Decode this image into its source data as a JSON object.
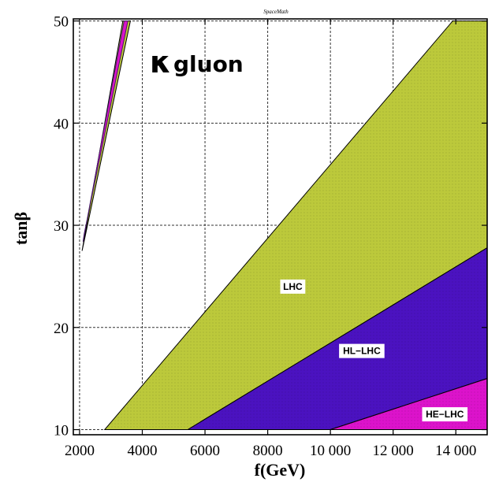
{
  "chart_data": {
    "type": "area",
    "title": "SpaceMath",
    "annotation_main": "κ",
    "annotation_sub": "gluon",
    "xlabel": "f(GeV)",
    "ylabel": "tanβ",
    "xlim": [
      1800,
      15000
    ],
    "ylim": [
      9.5,
      50.2
    ],
    "xticks": [
      2000,
      4000,
      6000,
      8000,
      10000,
      12000,
      14000
    ],
    "xtick_labels": [
      "2000",
      "4000",
      "6000",
      "8000",
      "10 000",
      "12 000",
      "14 000"
    ],
    "yticks": [
      10,
      20,
      30,
      40,
      50
    ],
    "ytick_labels": [
      "10",
      "20",
      "30",
      "40",
      "50"
    ],
    "grid": true,
    "colors": {
      "LHC": "#bcc93b",
      "HL-LHC": "#4b12c0",
      "HE-LHC": "#dc13cb",
      "sliver_edge": "#4a1a6a"
    },
    "regions": [
      {
        "name": "LHC",
        "label": "LHC",
        "label_at": [
          8800,
          24
        ],
        "polygon": [
          [
            2800,
            10
          ],
          [
            13900,
            50
          ],
          [
            15000,
            50
          ],
          [
            15000,
            27.8
          ],
          [
            5450,
            10
          ]
        ]
      },
      {
        "name": "HL-LHC",
        "label": "HL−LHC",
        "label_at": [
          11000,
          17.7
        ],
        "polygon": [
          [
            5450,
            10
          ],
          [
            15000,
            27.8
          ],
          [
            15000,
            15
          ],
          [
            10000,
            10
          ]
        ]
      },
      {
        "name": "HE-LHC",
        "label": "HE−LHC",
        "label_at": [
          13650,
          11.5
        ],
        "polygon": [
          [
            10000,
            10
          ],
          [
            15000,
            15
          ],
          [
            15000,
            10
          ]
        ]
      }
    ],
    "sliver": {
      "outer": [
        [
          2080,
          27.5
        ],
        [
          3380,
          50
        ],
        [
          3620,
          50
        ],
        [
          2150,
          28.5
        ]
      ],
      "inner": [
        [
          2110,
          28.4
        ],
        [
          3420,
          50
        ],
        [
          3540,
          50
        ],
        [
          2150,
          29.2
        ]
      ]
    }
  }
}
